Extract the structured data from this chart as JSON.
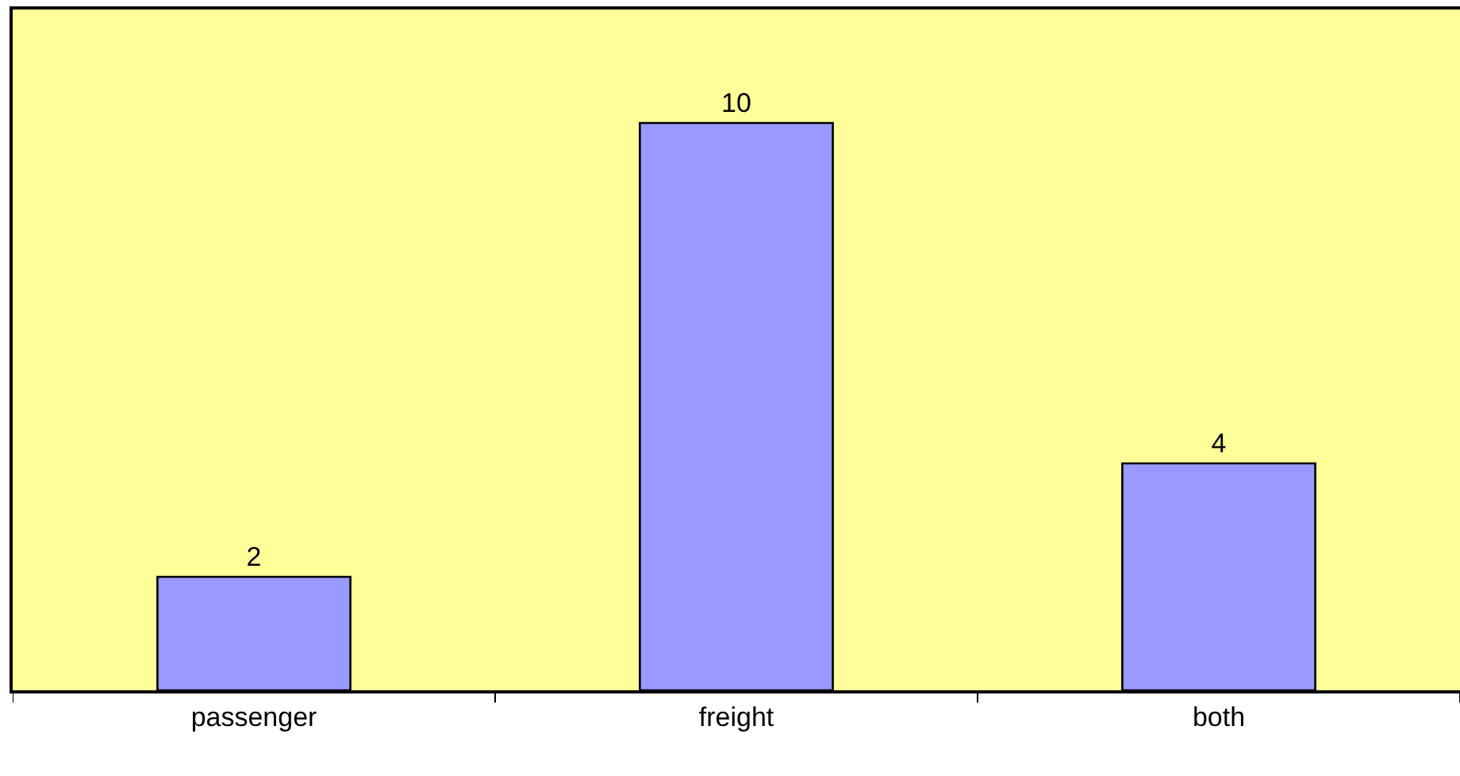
{
  "chart_data": {
    "type": "bar",
    "categories": [
      "passenger",
      "freight",
      "both"
    ],
    "values": [
      2,
      10,
      4
    ],
    "color": "#9999ff",
    "ylim": [
      0,
      12
    ],
    "tick_labels": "x",
    "data_labels": true,
    "grid": false,
    "legend": false
  }
}
